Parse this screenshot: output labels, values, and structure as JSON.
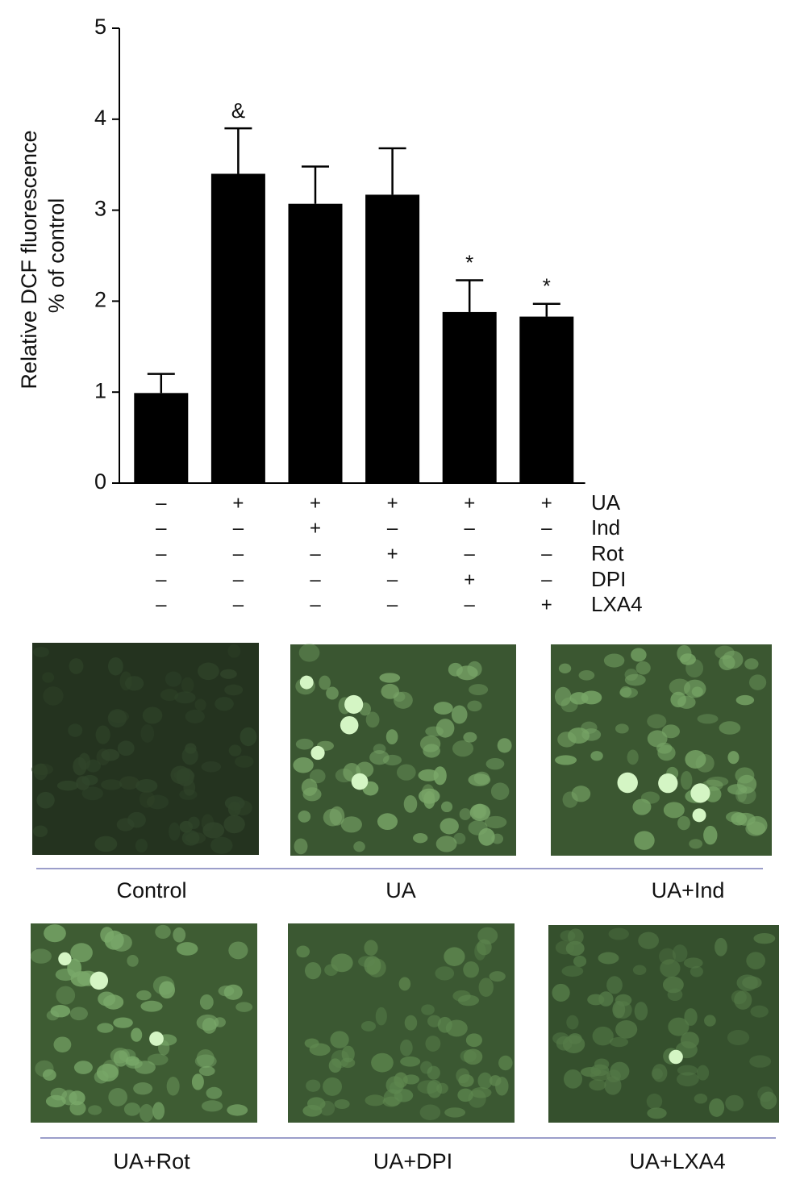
{
  "chart_data": {
    "type": "bar",
    "y_label": [
      "Relative DCF fluorescence",
      "% of control"
    ],
    "categories": [
      null,
      null,
      null,
      null,
      null,
      null
    ],
    "values": [
      0.99,
      3.4,
      3.07,
      3.17,
      1.88,
      1.83
    ],
    "errors": [
      0.21,
      0.5,
      0.41,
      0.51,
      0.35,
      0.14
    ],
    "annotations": [
      null,
      "&",
      null,
      null,
      "*",
      "*"
    ],
    "color": "#000000",
    "ylim": [
      0,
      5
    ],
    "yticks": [
      0,
      1,
      2,
      3,
      4,
      5
    ],
    "grid": false,
    "treatments": [
      {
        "name": "UA",
        "signs": [
          "–",
          "+",
          "+",
          "+",
          "+",
          "+"
        ]
      },
      {
        "name": "Ind",
        "signs": [
          "–",
          "–",
          "+",
          "–",
          "–",
          "–"
        ]
      },
      {
        "name": "Rot",
        "signs": [
          "–",
          "–",
          "–",
          "+",
          "–",
          "–"
        ]
      },
      {
        "name": "DPI",
        "signs": [
          "–",
          "–",
          "–",
          "–",
          "+",
          "–"
        ]
      },
      {
        "name": "LXA4",
        "signs": [
          "–",
          "–",
          "–",
          "–",
          "–",
          "+"
        ]
      }
    ]
  },
  "panels": [
    {
      "caption": "Control"
    },
    {
      "caption": "UA"
    },
    {
      "caption": "UA+Ind"
    },
    {
      "caption": "UA+Rot"
    },
    {
      "caption": "UA+DPI"
    },
    {
      "caption": "UA+LXA4"
    }
  ]
}
